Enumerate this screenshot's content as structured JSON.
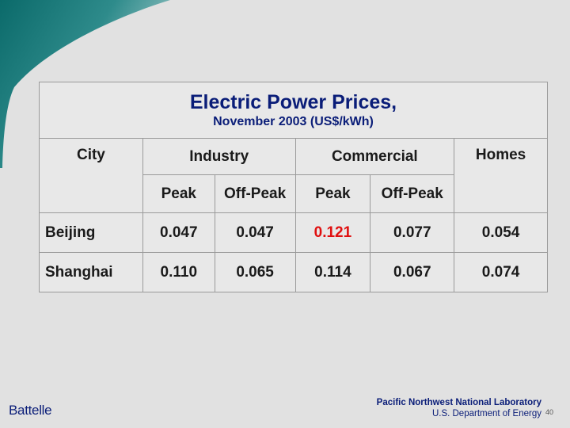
{
  "title": "Electric Power Prices,",
  "subtitle": "November 2003 (US$/kWh)",
  "headers": {
    "city": "City",
    "industry": "Industry",
    "commercial": "Commercial",
    "homes": "Homes"
  },
  "subheaders": [
    "Peak",
    "Off-Peak",
    "Peak",
    "Off-Peak"
  ],
  "rows": [
    {
      "city": "Beijing",
      "values": [
        "0.047",
        "0.047",
        "0.121",
        "0.077",
        "0.054"
      ]
    },
    {
      "city": "Shanghai",
      "values": [
        "0.110",
        "0.065",
        "0.114",
        "0.067",
        "0.074"
      ]
    }
  ],
  "highlight_color": "#e01010",
  "footer": {
    "left_brand": "Battelle",
    "right_line1": "Pacific Northwest National Laboratory",
    "right_line2": "U.S. Department of Energy",
    "page_number": "40"
  }
}
